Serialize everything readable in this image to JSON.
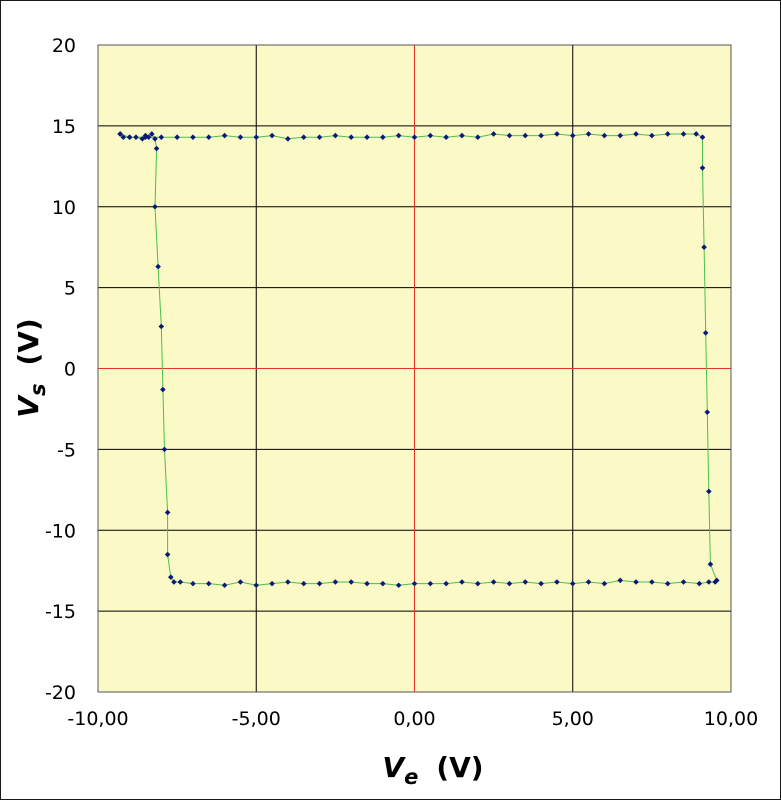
{
  "chart_data": {
    "type": "scatter",
    "title": "",
    "xlabel": {
      "symbol": "V",
      "subscript": "e",
      "unit": "(V)"
    },
    "ylabel": {
      "symbol": "V",
      "subscript": "s",
      "unit": "(V)"
    },
    "xlim": [
      -10,
      10
    ],
    "ylim": [
      -20,
      20
    ],
    "x_ticks": [
      -10,
      -5,
      0,
      5,
      10
    ],
    "x_tick_labels": [
      "-10,00",
      "-5,00",
      "0,00",
      "5,00",
      "10,00"
    ],
    "y_ticks": [
      -20,
      -15,
      -10,
      -5,
      0,
      5,
      10,
      15,
      20
    ],
    "y_tick_labels": [
      "-20",
      "-15",
      "-10",
      "-5",
      "0",
      "5",
      "10",
      "15",
      "20"
    ],
    "grid": true,
    "legend": "none",
    "colors": {
      "plot_background": "#fbf9c6",
      "grid": "#000000",
      "zero_axes": "#e8312a",
      "markers": "#0a1a7a",
      "line": "#4cc04c"
    },
    "series": [
      {
        "values": [
          [
            -9.3,
            14.5
          ],
          [
            -9.2,
            14.3
          ],
          [
            -9.0,
            14.3
          ],
          [
            -8.8,
            14.3
          ],
          [
            -8.6,
            14.2
          ],
          [
            -8.5,
            14.4
          ],
          [
            -8.4,
            14.3
          ],
          [
            -8.3,
            14.5
          ],
          [
            -8.2,
            14.2
          ],
          [
            -8.15,
            13.6
          ],
          [
            -8.2,
            10.0
          ],
          [
            -8.1,
            6.3
          ],
          [
            -8.0,
            2.6
          ],
          [
            -7.95,
            -1.3
          ],
          [
            -7.9,
            -5.0
          ],
          [
            -7.8,
            -8.9
          ],
          [
            -7.8,
            -11.5
          ],
          [
            -7.7,
            -12.9
          ],
          [
            -7.6,
            -13.2
          ],
          [
            -7.4,
            -13.2
          ],
          [
            -7.0,
            -13.3
          ],
          [
            -6.5,
            -13.3
          ],
          [
            -6.0,
            -13.4
          ],
          [
            -5.5,
            -13.2
          ],
          [
            -5.0,
            -13.4
          ],
          [
            -4.5,
            -13.3
          ],
          [
            -4.0,
            -13.2
          ],
          [
            -3.5,
            -13.3
          ],
          [
            -3.0,
            -13.3
          ],
          [
            -2.5,
            -13.2
          ],
          [
            -2.0,
            -13.2
          ],
          [
            -1.5,
            -13.3
          ],
          [
            -1.0,
            -13.3
          ],
          [
            -0.5,
            -13.4
          ],
          [
            0.0,
            -13.3
          ],
          [
            0.5,
            -13.3
          ],
          [
            1.0,
            -13.3
          ],
          [
            1.5,
            -13.2
          ],
          [
            2.0,
            -13.3
          ],
          [
            2.5,
            -13.2
          ],
          [
            3.0,
            -13.3
          ],
          [
            3.5,
            -13.2
          ],
          [
            4.0,
            -13.3
          ],
          [
            4.5,
            -13.2
          ],
          [
            5.0,
            -13.3
          ],
          [
            5.5,
            -13.2
          ],
          [
            6.0,
            -13.3
          ],
          [
            6.5,
            -13.1
          ],
          [
            7.0,
            -13.2
          ],
          [
            7.5,
            -13.2
          ],
          [
            8.0,
            -13.3
          ],
          [
            8.5,
            -13.2
          ],
          [
            9.0,
            -13.3
          ],
          [
            9.3,
            -13.2
          ],
          [
            9.5,
            -13.2
          ],
          [
            9.55,
            -13.1
          ],
          [
            9.35,
            -12.1
          ],
          [
            9.3,
            -7.6
          ],
          [
            9.25,
            -2.7
          ],
          [
            9.2,
            2.2
          ],
          [
            9.15,
            7.5
          ],
          [
            9.1,
            12.4
          ],
          [
            9.1,
            14.3
          ],
          [
            8.9,
            14.5
          ],
          [
            8.5,
            14.5
          ],
          [
            8.0,
            14.5
          ],
          [
            7.5,
            14.4
          ],
          [
            7.0,
            14.5
          ],
          [
            6.5,
            14.4
          ],
          [
            6.0,
            14.4
          ],
          [
            5.5,
            14.5
          ],
          [
            5.0,
            14.4
          ],
          [
            4.5,
            14.5
          ],
          [
            4.0,
            14.4
          ],
          [
            3.5,
            14.4
          ],
          [
            3.0,
            14.4
          ],
          [
            2.5,
            14.5
          ],
          [
            2.0,
            14.3
          ],
          [
            1.5,
            14.4
          ],
          [
            1.0,
            14.3
          ],
          [
            0.5,
            14.4
          ],
          [
            0.0,
            14.3
          ],
          [
            -0.5,
            14.4
          ],
          [
            -1.0,
            14.3
          ],
          [
            -1.5,
            14.3
          ],
          [
            -2.0,
            14.3
          ],
          [
            -2.5,
            14.4
          ],
          [
            -3.0,
            14.3
          ],
          [
            -3.5,
            14.3
          ],
          [
            -4.0,
            14.2
          ],
          [
            -4.5,
            14.4
          ],
          [
            -5.0,
            14.3
          ],
          [
            -5.5,
            14.3
          ],
          [
            -6.0,
            14.4
          ],
          [
            -6.5,
            14.3
          ],
          [
            -7.0,
            14.3
          ],
          [
            -7.5,
            14.3
          ],
          [
            -8.0,
            14.3
          ],
          [
            -8.5,
            14.3
          ],
          [
            -9.0,
            14.3
          ],
          [
            -9.3,
            14.5
          ]
        ]
      }
    ]
  }
}
